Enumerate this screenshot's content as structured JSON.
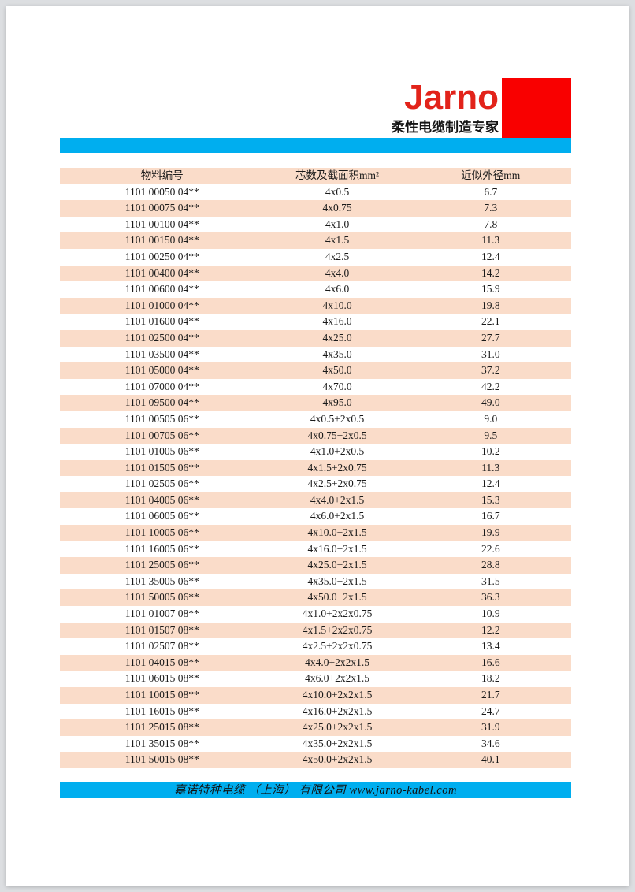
{
  "brand": {
    "name": "Jarno",
    "tagline": "柔性电缆制造专家"
  },
  "colors": {
    "accent_cyan": "#00AEEF",
    "brand_red_text": "#E2231A",
    "logo_red_block": "#F90000",
    "row_stripe_pink": "#FADCC9",
    "page_background": "#FFFFFF",
    "outer_background": "#DCDEE1"
  },
  "table": {
    "columns": [
      "物料编号",
      "芯数及截面积mm²",
      "近似外径mm"
    ],
    "rows": [
      [
        "1101 00050 04**",
        "4x0.5",
        "6.7"
      ],
      [
        "1101 00075 04**",
        "4x0.75",
        "7.3"
      ],
      [
        "1101 00100 04**",
        "4x1.0",
        "7.8"
      ],
      [
        "1101 00150 04**",
        "4x1.5",
        "11.3"
      ],
      [
        "1101 00250 04**",
        "4x2.5",
        "12.4"
      ],
      [
        "1101 00400 04**",
        "4x4.0",
        "14.2"
      ],
      [
        "1101 00600 04**",
        "4x6.0",
        "15.9"
      ],
      [
        "1101 01000 04**",
        "4x10.0",
        "19.8"
      ],
      [
        "1101 01600 04**",
        "4x16.0",
        "22.1"
      ],
      [
        "1101 02500 04**",
        "4x25.0",
        "27.7"
      ],
      [
        "1101 03500 04**",
        "4x35.0",
        "31.0"
      ],
      [
        "1101 05000 04**",
        "4x50.0",
        "37.2"
      ],
      [
        "1101 07000 04**",
        "4x70.0",
        "42.2"
      ],
      [
        "1101 09500 04**",
        "4x95.0",
        "49.0"
      ],
      [
        "1101 00505 06**",
        "4x0.5+2x0.5",
        "9.0"
      ],
      [
        "1101 00705 06**",
        "4x0.75+2x0.5",
        "9.5"
      ],
      [
        "1101 01005 06**",
        "4x1.0+2x0.5",
        "10.2"
      ],
      [
        "1101 01505 06**",
        "4x1.5+2x0.75",
        "11.3"
      ],
      [
        "1101 02505 06**",
        "4x2.5+2x0.75",
        "12.4"
      ],
      [
        "1101 04005 06**",
        "4x4.0+2x1.5",
        "15.3"
      ],
      [
        "1101 06005 06**",
        "4x6.0+2x1.5",
        "16.7"
      ],
      [
        "1101 10005 06**",
        "4x10.0+2x1.5",
        "19.9"
      ],
      [
        "1101 16005 06**",
        "4x16.0+2x1.5",
        "22.6"
      ],
      [
        "1101 25005 06**",
        "4x25.0+2x1.5",
        "28.8"
      ],
      [
        "1101 35005 06**",
        "4x35.0+2x1.5",
        "31.5"
      ],
      [
        "1101 50005 06**",
        "4x50.0+2x1.5",
        "36.3"
      ],
      [
        "1101 01007 08**",
        "4x1.0+2x2x0.75",
        "10.9"
      ],
      [
        "1101 01507 08**",
        "4x1.5+2x2x0.75",
        "12.2"
      ],
      [
        "1101 02507 08**",
        "4x2.5+2x2x0.75",
        "13.4"
      ],
      [
        "1101 04015 08**",
        "4x4.0+2x2x1.5",
        "16.6"
      ],
      [
        "1101 06015 08**",
        "4x6.0+2x2x1.5",
        "18.2"
      ],
      [
        "1101 10015 08**",
        "4x10.0+2x2x1.5",
        "21.7"
      ],
      [
        "1101 16015 08**",
        "4x16.0+2x2x1.5",
        "24.7"
      ],
      [
        "1101 25015 08**",
        "4x25.0+2x2x1.5",
        "31.9"
      ],
      [
        "1101 35015 08**",
        "4x35.0+2x2x1.5",
        "34.6"
      ],
      [
        "1101 50015 08**",
        "4x50.0+2x2x1.5",
        "40.1"
      ]
    ]
  },
  "footer": {
    "text": "嘉诺特种电缆 （上海） 有限公司 www.jarno-kabel.com"
  }
}
